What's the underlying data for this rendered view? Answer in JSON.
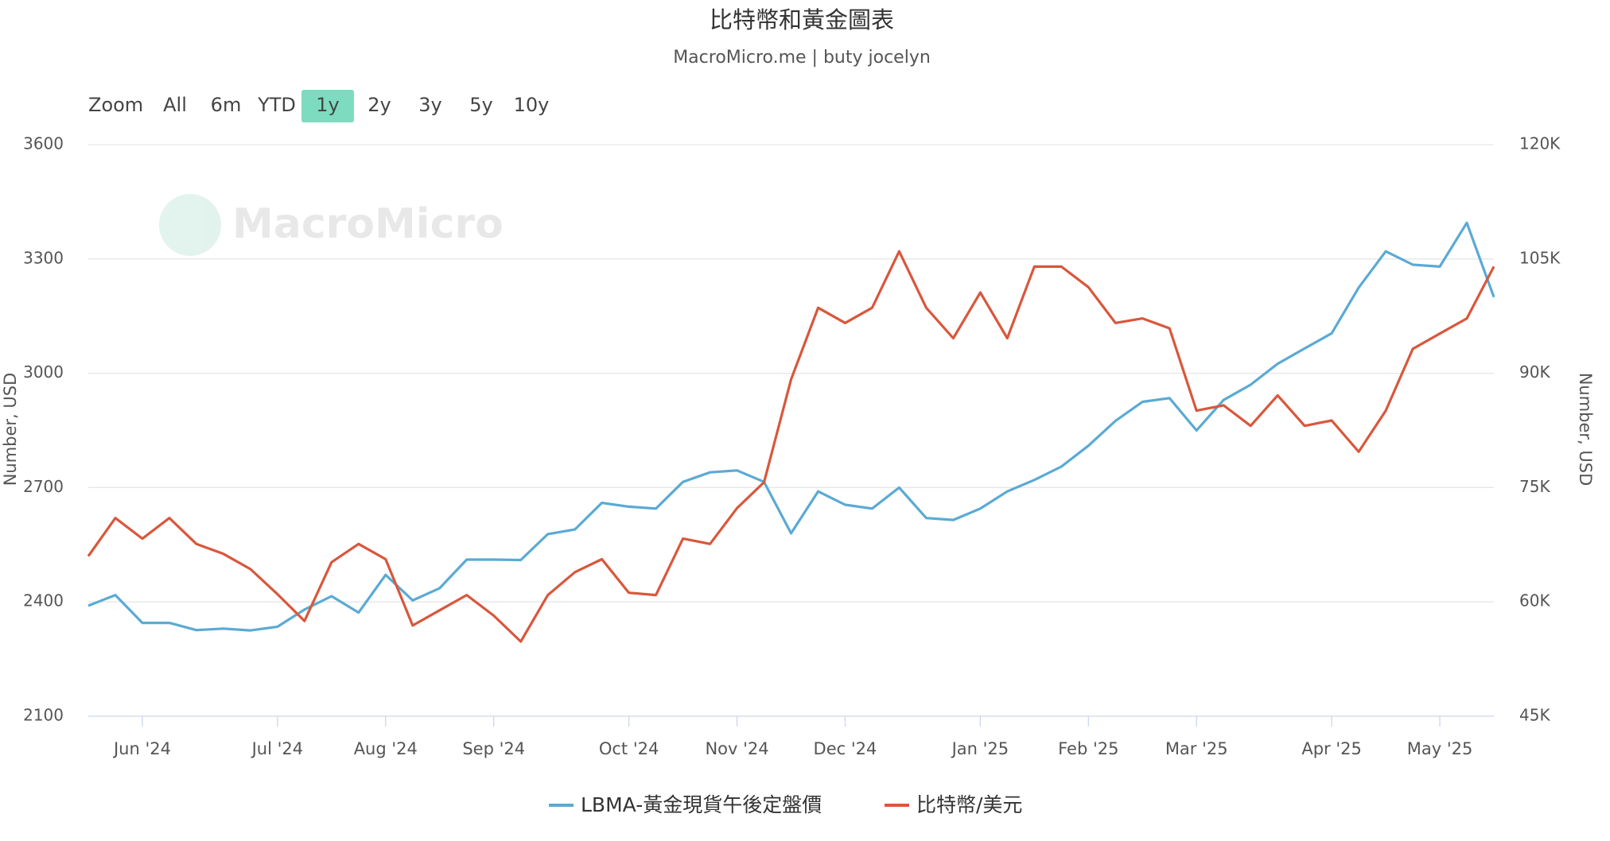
{
  "chart_data": {
    "type": "line",
    "title": "比特幣和黃金圖表",
    "subtitle": "MacroMicro.me | buty jocelyn",
    "watermark": "MacroMicro",
    "range_selector": {
      "label": "Zoom",
      "buttons": [
        "All",
        "6m",
        "YTD",
        "1y",
        "2y",
        "3y",
        "5y",
        "10y"
      ],
      "selected": 3
    },
    "y_label": "Number, USD",
    "y2_label": "Number, USD",
    "categories": [
      null,
      null,
      "Jun '24",
      null,
      null,
      null,
      null,
      "Jul '24",
      null,
      null,
      null,
      "Aug '24",
      null,
      null,
      null,
      "Sep '24",
      null,
      null,
      null,
      null,
      "Oct '24",
      null,
      null,
      null,
      "Nov '24",
      null,
      null,
      null,
      "Dec '24",
      null,
      null,
      null,
      null,
      "Jan '25",
      null,
      null,
      null,
      "Feb '25",
      null,
      null,
      null,
      "Mar '25",
      null,
      null,
      null,
      null,
      "Apr '25",
      null,
      null,
      null,
      "May '25",
      null,
      null
    ],
    "series": [
      {
        "name": "LBMA-黃金現貨午後定盤價",
        "color": "#5aaad4",
        "axis": "y",
        "values": [
          2390,
          2418,
          2345,
          2345,
          2326,
          2330,
          2325,
          2335,
          2380,
          2415,
          2372,
          2471,
          2404,
          2436,
          2511,
          2511,
          2510,
          2578,
          2590,
          2660,
          2650,
          2645,
          2715,
          2740,
          2745,
          2715,
          2580,
          2690,
          2655,
          2645,
          2700,
          2620,
          2615,
          2645,
          2690,
          2720,
          2755,
          2810,
          2875,
          2925,
          2935,
          2850,
          2930,
          2970,
          3025,
          3065,
          3105,
          3225,
          3320,
          3285,
          3280,
          3395,
          3200
        ]
      },
      {
        "name": "比特幣/美元",
        "color": "#d9573c",
        "axis": "y2",
        "values": [
          66000,
          71000,
          68300,
          71000,
          67600,
          66300,
          64300,
          61000,
          57500,
          65200,
          67600,
          65600,
          56900,
          58900,
          60900,
          58200,
          54800,
          60900,
          63900,
          65600,
          61200,
          60900,
          68300,
          67600,
          72300,
          75700,
          89200,
          98600,
          96600,
          98600,
          106000,
          98600,
          94600,
          100600,
          94600,
          104000,
          104000,
          101300,
          96600,
          97200,
          95900,
          85100,
          85800,
          83100,
          87100,
          83100,
          83800,
          79700,
          85100,
          93200,
          95200,
          97200,
          104000
        ]
      }
    ],
    "ylim": [
      2100,
      3600
    ],
    "yticks": [
      2100,
      2400,
      2700,
      3000,
      3300,
      3600
    ],
    "y2lim": [
      45000,
      120000
    ],
    "y2ticks": [
      {
        "value": 45000,
        "label": "45K"
      },
      {
        "value": 60000,
        "label": "60K"
      },
      {
        "value": 75000,
        "label": "75K"
      },
      {
        "value": 90000,
        "label": "90K"
      },
      {
        "value": 105000,
        "label": "105K"
      },
      {
        "value": 120000,
        "label": "120K"
      }
    ],
    "grid": true
  }
}
